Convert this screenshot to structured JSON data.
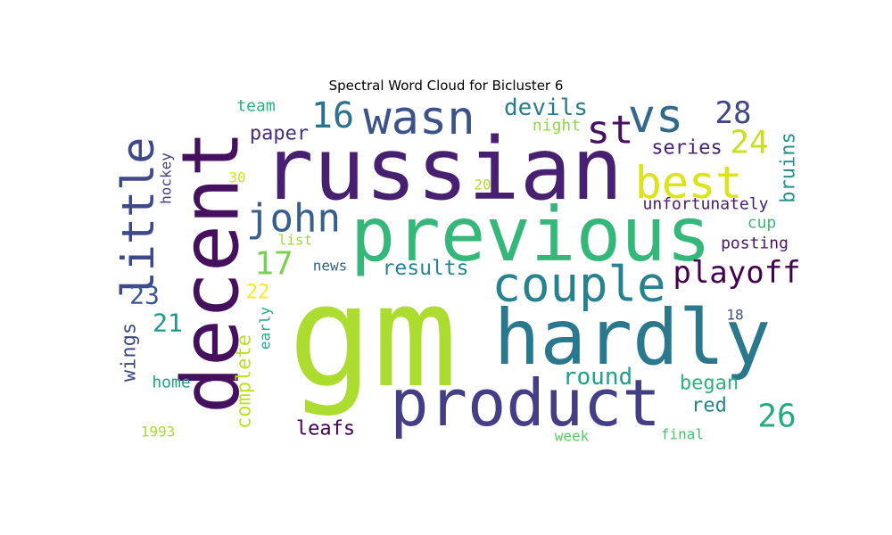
{
  "chart_data": {
    "type": "wordcloud",
    "title": "Spectral Word Cloud for Bicluster 6",
    "colormap": "viridis",
    "words": [
      {
        "text": "gm",
        "size": 100,
        "color": "#addc30"
      },
      {
        "text": "russian",
        "size": 62,
        "color": "#482071"
      },
      {
        "text": "decent",
        "size": 56,
        "color": "#45115e"
      },
      {
        "text": "previous",
        "size": 53,
        "color": "#35b779"
      },
      {
        "text": "hardly",
        "size": 53,
        "color": "#2a788e"
      },
      {
        "text": "product",
        "size": 50,
        "color": "#433e85"
      },
      {
        "text": "couple",
        "size": 38,
        "color": "#26828e"
      },
      {
        "text": "wasn",
        "size": 36,
        "color": "#3b528b"
      },
      {
        "text": "vs",
        "size": 34,
        "color": "#31688e"
      },
      {
        "text": "little",
        "size": 32,
        "color": "#3e4989"
      },
      {
        "text": "best",
        "size": 32,
        "color": "#dde318"
      },
      {
        "text": "st",
        "size": 30,
        "color": "#471063"
      },
      {
        "text": "john",
        "size": 28,
        "color": "#355f8d"
      },
      {
        "text": "playoff",
        "size": 26,
        "color": "#440154"
      },
      {
        "text": "16",
        "size": 26,
        "color": "#2c728e"
      },
      {
        "text": "28",
        "size": 24,
        "color": "#414487"
      },
      {
        "text": "24",
        "size": 24,
        "color": "#c8e020"
      },
      {
        "text": "26",
        "size": 24,
        "color": "#25ab82"
      },
      {
        "text": "17",
        "size": 24,
        "color": "#7ad151"
      },
      {
        "text": "23",
        "size": 20,
        "color": "#39568c"
      },
      {
        "text": "21",
        "size": 20,
        "color": "#1f988b"
      },
      {
        "text": "devils",
        "size": 20,
        "color": "#287c8e"
      },
      {
        "text": "round",
        "size": 20,
        "color": "#1f9e89"
      },
      {
        "text": "results",
        "size": 19,
        "color": "#25858e"
      },
      {
        "text": "bruins",
        "size": 19,
        "color": "#21918c"
      },
      {
        "text": "series",
        "size": 18,
        "color": "#482475"
      },
      {
        "text": "paper",
        "size": 18,
        "color": "#46307e"
      },
      {
        "text": "began",
        "size": 18,
        "color": "#2db27d"
      },
      {
        "text": "wings",
        "size": 18,
        "color": "#3f4788"
      },
      {
        "text": "complete",
        "size": 18,
        "color": "#bddf26"
      },
      {
        "text": "leafs",
        "size": 18,
        "color": "#440154"
      },
      {
        "text": "red",
        "size": 18,
        "color": "#26828e"
      },
      {
        "text": "unfortunately",
        "size": 16,
        "color": "#481b6d"
      },
      {
        "text": "22",
        "size": 18,
        "color": "#fde725"
      },
      {
        "text": "posting",
        "size": 16,
        "color": "#481668"
      },
      {
        "text": "home",
        "size": 16,
        "color": "#1fa188"
      },
      {
        "text": "team",
        "size": 16,
        "color": "#29af7f"
      },
      {
        "text": "night",
        "size": 16,
        "color": "#8fd744"
      },
      {
        "text": "cup",
        "size": 16,
        "color": "#3bbb75"
      },
      {
        "text": "hockey",
        "size": 15,
        "color": "#424086"
      },
      {
        "text": "news",
        "size": 15,
        "color": "#33638d"
      },
      {
        "text": "early",
        "size": 15,
        "color": "#22a884"
      },
      {
        "text": "list",
        "size": 15,
        "color": "#a2da37"
      },
      {
        "text": "30",
        "size": 15,
        "color": "#d2e21b"
      },
      {
        "text": "20",
        "size": 14,
        "color": "#b5de2b"
      },
      {
        "text": "18",
        "size": 15,
        "color": "#3b528b"
      },
      {
        "text": "week",
        "size": 15,
        "color": "#5ec962"
      },
      {
        "text": "final",
        "size": 15,
        "color": "#4ac16d"
      },
      {
        "text": "1993",
        "size": 15,
        "color": "#a8db34"
      }
    ]
  }
}
